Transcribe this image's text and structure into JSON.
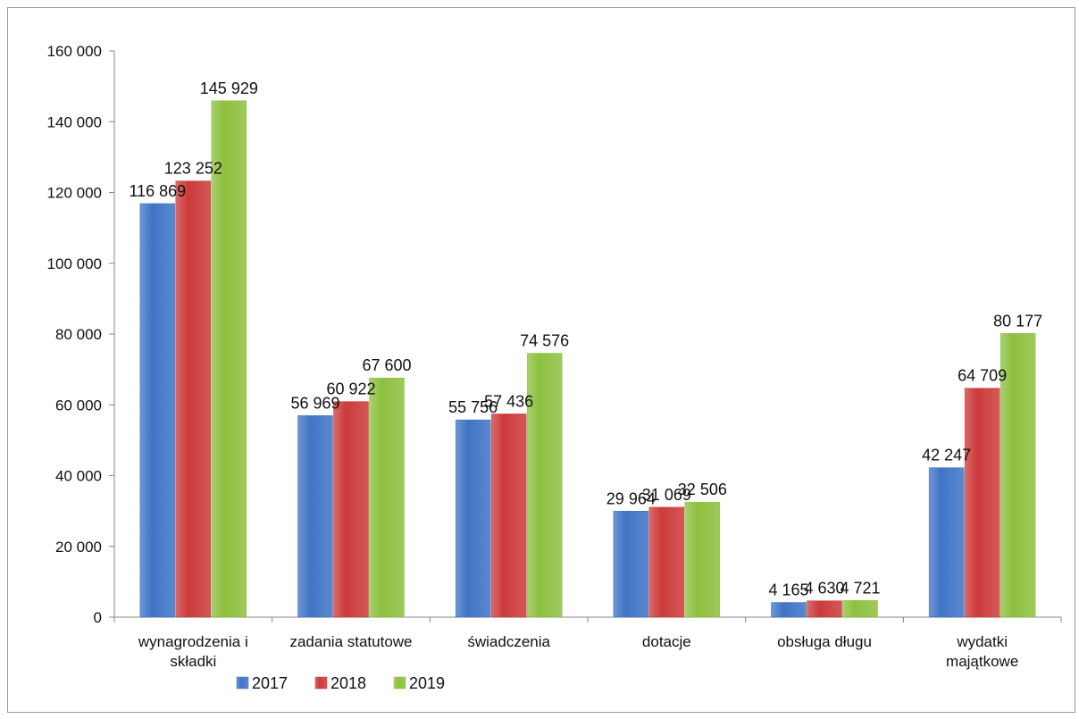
{
  "chart_data": {
    "type": "bar",
    "categories": [
      [
        "wynagrodzenia i",
        "składki"
      ],
      [
        "zadania statutowe"
      ],
      [
        "świadczenia"
      ],
      [
        "dotacje"
      ],
      [
        "obsługa długu"
      ],
      [
        "wydatki",
        "majątkowe"
      ]
    ],
    "series": [
      {
        "name": "2017",
        "color": "#3f74c6",
        "values": [
          116869,
          56969,
          55756,
          29964,
          4165,
          42247
        ],
        "labels": [
          "116 869",
          "56 969",
          "55 756",
          "29 964",
          "4 165",
          "42 247"
        ]
      },
      {
        "name": "2018",
        "color": "#cc3a3a",
        "values": [
          123252,
          60922,
          57436,
          31069,
          4630,
          64709
        ],
        "labels": [
          "123 252",
          "60 922",
          "57 436",
          "31 069",
          "4 630",
          "64 709"
        ]
      },
      {
        "name": "2019",
        "color": "#8dc03f",
        "values": [
          145929,
          67600,
          74576,
          32506,
          4721,
          80177
        ],
        "labels": [
          "145 929",
          "67 600",
          "74 576",
          "32 506",
          "4 721",
          "80 177"
        ]
      }
    ],
    "yticks": [
      0,
      20000,
      40000,
      60000,
      80000,
      100000,
      120000,
      140000,
      160000
    ],
    "ytick_labels": [
      "0",
      "20 000",
      "40 000",
      "60 000",
      "80 000",
      "100 000",
      "120 000",
      "140 000",
      "160 000"
    ],
    "ylim": [
      0,
      160000
    ],
    "legend": {
      "position": "bottom",
      "entries": [
        "2017",
        "2018",
        "2019"
      ]
    },
    "grid": false,
    "title": "",
    "xlabel": "",
    "ylabel": ""
  }
}
